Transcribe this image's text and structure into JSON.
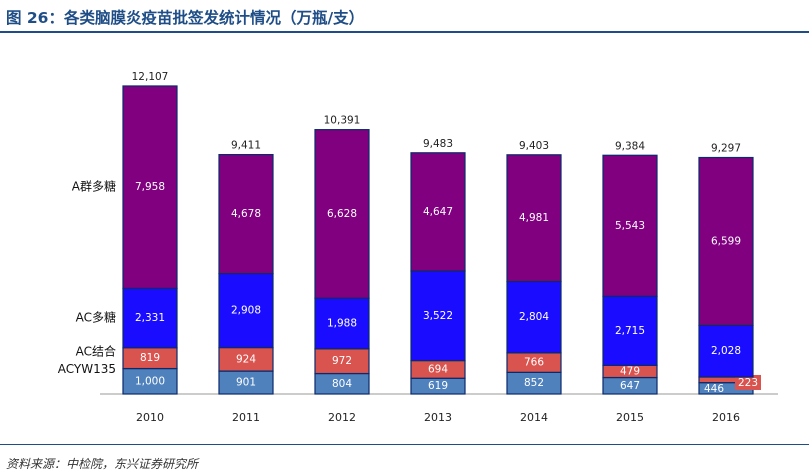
{
  "title": "图 26：各类脑膜炎疫苗批签发统计情况（万瓶/支）",
  "source": "资料来源：中检院，东兴证券研究所",
  "chart_data": {
    "type": "bar",
    "stacked": true,
    "categories": [
      "2010",
      "2011",
      "2012",
      "2013",
      "2014",
      "2015",
      "2016"
    ],
    "series": [
      {
        "name": "ACYW135",
        "color": "#4f81bd",
        "values": [
          1000,
          901,
          804,
          619,
          852,
          647,
          446
        ],
        "labels": [
          "1,000",
          "901",
          "804",
          "619",
          "852",
          "647",
          "446"
        ]
      },
      {
        "name": "AC结合",
        "color": "#d9534f",
        "values": [
          819,
          924,
          972,
          694,
          766,
          479,
          223
        ],
        "labels": [
          "819",
          "924",
          "972",
          "694",
          "766",
          "479",
          "223"
        ]
      },
      {
        "name": "AC多糖",
        "color": "#1a0dff",
        "values": [
          2331,
          2908,
          1988,
          3522,
          2804,
          2715,
          2028
        ],
        "labels": [
          "2,331",
          "2,908",
          "1,988",
          "3,522",
          "2,804",
          "2,715",
          "2,028"
        ]
      },
      {
        "name": "A群多糖",
        "color": "#800080",
        "values": [
          7958,
          4678,
          6628,
          4647,
          4981,
          5543,
          6599
        ],
        "labels": [
          "7,958",
          "4,678",
          "6,628",
          "4,647",
          "4,981",
          "5,543",
          "6,599"
        ]
      }
    ],
    "totals": [
      "12,107",
      "9,411",
      "10,391",
      "9,483",
      "9,403",
      "9,384",
      "9,297"
    ],
    "legend_placement": "left, aligned with bar segments",
    "grid": false
  }
}
